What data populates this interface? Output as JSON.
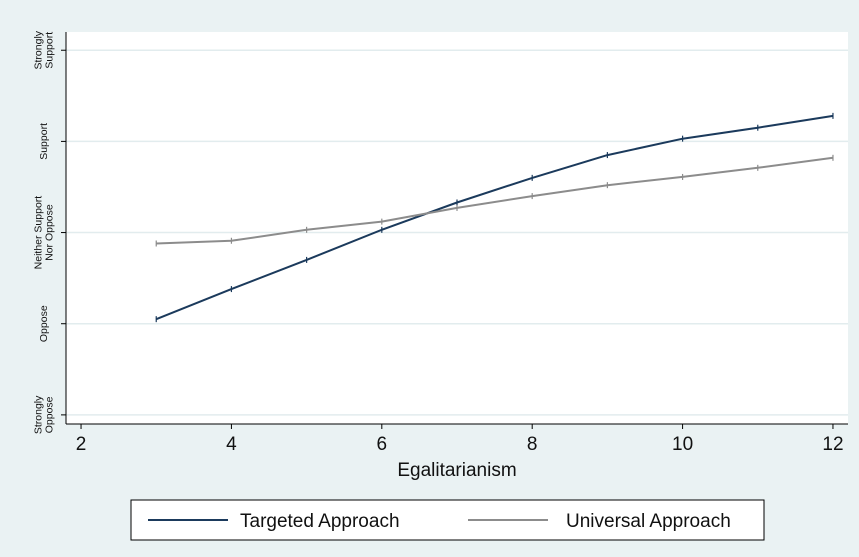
{
  "chart_data": {
    "type": "line",
    "title": "",
    "xlabel": "Egalitarianism",
    "ylabel": "",
    "xlim": [
      1.8,
      12.2
    ],
    "ylim": [
      0.9,
      5.2
    ],
    "x_ticks": [
      2,
      4,
      6,
      8,
      10,
      12
    ],
    "y_ticks": [
      {
        "value": 5,
        "lines": [
          "Strongly",
          "Support"
        ]
      },
      {
        "value": 4,
        "lines": [
          "Support"
        ]
      },
      {
        "value": 3,
        "lines": [
          "Neither Support",
          "Nor Oppose"
        ]
      },
      {
        "value": 2,
        "lines": [
          "Oppose"
        ]
      },
      {
        "value": 1,
        "lines": [
          "Strongly",
          "Oppose"
        ]
      }
    ],
    "grid": "horizontal",
    "legend_position": "bottom",
    "series": [
      {
        "name": "Targeted Approach",
        "color": "#1b3a5c",
        "x": [
          3,
          4,
          5,
          6,
          7,
          8,
          9,
          10,
          11,
          12
        ],
        "y": [
          2.05,
          2.38,
          2.7,
          3.03,
          3.33,
          3.6,
          3.85,
          4.03,
          4.15,
          4.28
        ]
      },
      {
        "name": "Universal Approach",
        "color": "#8c8c8c",
        "x": [
          3,
          4,
          5,
          6,
          7,
          8,
          9,
          10,
          11,
          12
        ],
        "y": [
          2.88,
          2.91,
          3.03,
          3.12,
          3.27,
          3.4,
          3.52,
          3.61,
          3.71,
          3.82
        ]
      }
    ]
  }
}
